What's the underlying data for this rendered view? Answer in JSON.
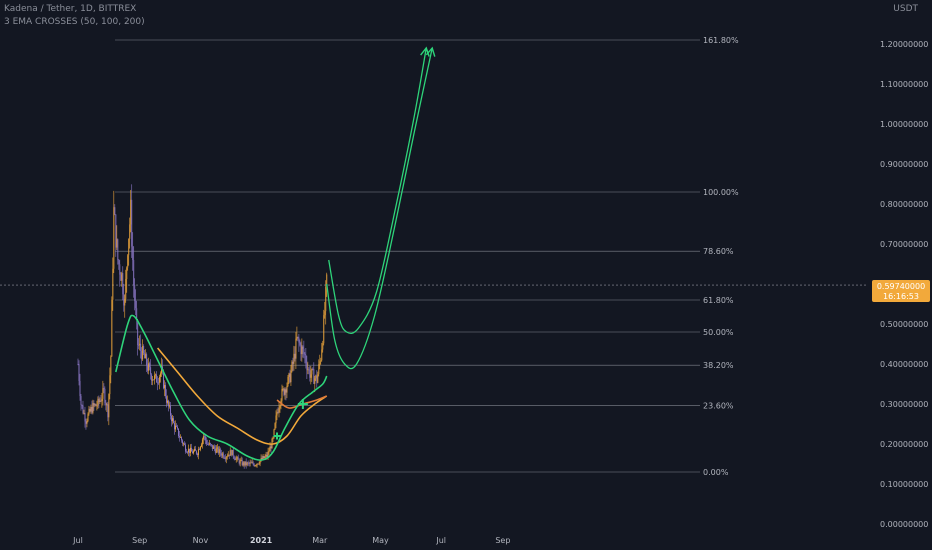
{
  "header": {
    "symbol_line": "Kadena / Tether, 1D, BITTREX",
    "indicator_line": "3 EMA CROSSES (50, 100, 200)",
    "currency": "USDT"
  },
  "price_readout": {
    "price": "0.59740000",
    "countdown": "16:16:53"
  },
  "colors": {
    "background": "#131722",
    "candle_up": "#f2a93b",
    "candle_down": "#8c78c8",
    "ema_fast": "#2ed47a",
    "ema_slow": "#f2a93b",
    "ema_slowest": "#e07b39",
    "projection": "#2ed47a",
    "fib_line": "#b2b5be",
    "price_box": "#f2a93b"
  },
  "chart_data": {
    "type": "candlestick",
    "ylim": [
      0,
      1.3
    ],
    "yticks": [
      "0.00000000",
      "0.10000000",
      "0.20000000",
      "0.30000000",
      "0.40000000",
      "0.50000000",
      "0.60000000",
      "0.70000000",
      "0.80000000",
      "0.90000000",
      "1.00000000",
      "1.10000000",
      "1.20000000"
    ],
    "ytick_values": [
      0,
      0.1,
      0.2,
      0.3,
      0.4,
      0.5,
      0.6,
      0.7,
      0.8,
      0.9,
      1.0,
      1.1,
      1.2
    ],
    "xticks": [
      {
        "label": "Jul",
        "day": 0,
        "bold": false
      },
      {
        "label": "Sep",
        "day": 62,
        "bold": false
      },
      {
        "label": "Nov",
        "day": 123,
        "bold": false
      },
      {
        "label": "2021",
        "day": 184,
        "bold": true
      },
      {
        "label": "Mar",
        "day": 243,
        "bold": false
      },
      {
        "label": "May",
        "day": 304,
        "bold": false
      },
      {
        "label": "Jul",
        "day": 365,
        "bold": false
      },
      {
        "label": "Sep",
        "day": 427,
        "bold": false
      }
    ],
    "last_price": 0.5974,
    "fib_levels": [
      {
        "label": "0.00%",
        "value": 0.13
      },
      {
        "label": "23.60%",
        "value": 0.296
      },
      {
        "label": "38.20%",
        "value": 0.397
      },
      {
        "label": "50.00%",
        "value": 0.48
      },
      {
        "label": "61.80%",
        "value": 0.56
      },
      {
        "label": "78.60%",
        "value": 0.682
      },
      {
        "label": "100.00%",
        "value": 0.83
      },
      {
        "label": "161.80%",
        "value": 1.21
      }
    ],
    "price_anchors": [
      [
        0,
        0.4
      ],
      [
        3,
        0.3
      ],
      [
        8,
        0.26
      ],
      [
        14,
        0.29
      ],
      [
        20,
        0.3
      ],
      [
        26,
        0.33
      ],
      [
        30,
        0.28
      ],
      [
        33,
        0.42
      ],
      [
        36,
        0.78
      ],
      [
        40,
        0.66
      ],
      [
        44,
        0.62
      ],
      [
        47,
        0.55
      ],
      [
        50,
        0.7
      ],
      [
        53,
        0.78
      ],
      [
        56,
        0.6
      ],
      [
        60,
        0.45
      ],
      [
        66,
        0.42
      ],
      [
        72,
        0.38
      ],
      [
        78,
        0.36
      ],
      [
        84,
        0.38
      ],
      [
        90,
        0.3
      ],
      [
        96,
        0.25
      ],
      [
        102,
        0.22
      ],
      [
        108,
        0.19
      ],
      [
        114,
        0.18
      ],
      [
        120,
        0.18
      ],
      [
        126,
        0.22
      ],
      [
        130,
        0.2
      ],
      [
        136,
        0.19
      ],
      [
        142,
        0.18
      ],
      [
        148,
        0.17
      ],
      [
        154,
        0.18
      ],
      [
        160,
        0.16
      ],
      [
        166,
        0.15
      ],
      [
        172,
        0.15
      ],
      [
        178,
        0.15
      ],
      [
        184,
        0.16
      ],
      [
        190,
        0.17
      ],
      [
        196,
        0.21
      ],
      [
        200,
        0.28
      ],
      [
        204,
        0.32
      ],
      [
        208,
        0.34
      ],
      [
        212,
        0.36
      ],
      [
        216,
        0.4
      ],
      [
        220,
        0.46
      ],
      [
        224,
        0.44
      ],
      [
        228,
        0.42
      ],
      [
        232,
        0.38
      ],
      [
        236,
        0.37
      ],
      [
        240,
        0.36
      ],
      [
        244,
        0.42
      ],
      [
        247,
        0.5
      ],
      [
        250,
        0.6
      ]
    ],
    "ema_fast": [
      [
        38,
        0.38
      ],
      [
        50,
        0.5
      ],
      [
        56,
        0.52
      ],
      [
        66,
        0.48
      ],
      [
        80,
        0.41
      ],
      [
        96,
        0.33
      ],
      [
        112,
        0.26
      ],
      [
        130,
        0.22
      ],
      [
        150,
        0.2
      ],
      [
        170,
        0.17
      ],
      [
        185,
        0.16
      ],
      [
        196,
        0.18
      ],
      [
        208,
        0.24
      ],
      [
        222,
        0.3
      ],
      [
        236,
        0.33
      ],
      [
        246,
        0.35
      ],
      [
        250,
        0.37
      ]
    ],
    "ema_slow": [
      [
        80,
        0.44
      ],
      [
        100,
        0.38
      ],
      [
        120,
        0.32
      ],
      [
        140,
        0.27
      ],
      [
        160,
        0.24
      ],
      [
        180,
        0.21
      ],
      [
        196,
        0.2
      ],
      [
        210,
        0.22
      ],
      [
        224,
        0.27
      ],
      [
        238,
        0.3
      ],
      [
        250,
        0.32
      ]
    ],
    "ema_slowest": [
      [
        200,
        0.31
      ],
      [
        212,
        0.29
      ],
      [
        226,
        0.3
      ],
      [
        240,
        0.31
      ],
      [
        250,
        0.32
      ]
    ],
    "projection_1": [
      [
        252,
        0.66
      ],
      [
        262,
        0.52
      ],
      [
        270,
        0.48
      ],
      [
        282,
        0.49
      ],
      [
        300,
        0.58
      ],
      [
        320,
        0.8
      ],
      [
        338,
        1.02
      ],
      [
        350,
        1.19
      ]
    ],
    "projection_2": [
      [
        250,
        0.6
      ],
      [
        258,
        0.46
      ],
      [
        268,
        0.4
      ],
      [
        280,
        0.4
      ],
      [
        298,
        0.52
      ],
      [
        318,
        0.74
      ],
      [
        338,
        0.98
      ],
      [
        356,
        1.19
      ]
    ]
  }
}
